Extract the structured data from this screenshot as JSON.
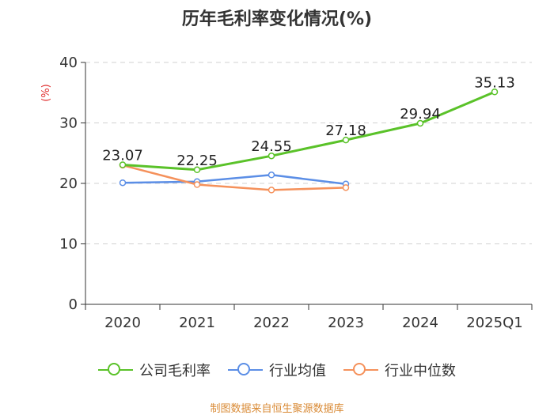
{
  "chart_data": {
    "type": "line",
    "title": "历年毛利率变化情况(%)",
    "ylabel": "(%)",
    "categories": [
      "2020",
      "2021",
      "2022",
      "2023",
      "2024",
      "2025Q1"
    ],
    "ylim": [
      0,
      40
    ],
    "yticks": [
      0,
      10,
      20,
      30,
      40
    ],
    "grid": true,
    "legend_position": "bottom",
    "series": [
      {
        "name": "公司毛利率",
        "color": "#5ac229",
        "values": [
          23.07,
          22.25,
          24.55,
          27.18,
          29.94,
          35.13
        ],
        "labels": true
      },
      {
        "name": "行业均值",
        "color": "#5b8ee6",
        "values": [
          20.1,
          20.3,
          21.4,
          19.9,
          null,
          null
        ],
        "labels": false
      },
      {
        "name": "行业中位数",
        "color": "#f5915b",
        "values": [
          23.0,
          19.8,
          18.9,
          19.3,
          null,
          null
        ],
        "labels": false
      }
    ]
  },
  "footer": {
    "source": "制图数据来自恒生聚源数据库"
  }
}
